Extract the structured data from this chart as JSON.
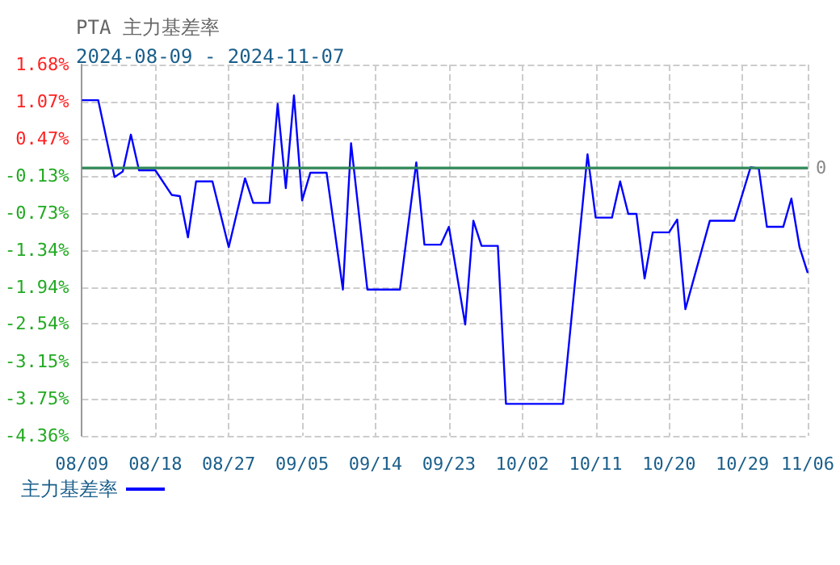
{
  "chart_data": {
    "type": "line",
    "title": "PTA 主力基差率",
    "subtitle": "2024-08-09 - 2024-11-07",
    "x": [
      "2024-08-09",
      "2024-08-11",
      "2024-08-13",
      "2024-08-14",
      "2024-08-15",
      "2024-08-16",
      "2024-08-18",
      "2024-08-20",
      "2024-08-21",
      "2024-08-22",
      "2024-08-23",
      "2024-08-25",
      "2024-08-27",
      "2024-08-29",
      "2024-08-30",
      "2024-09-01",
      "2024-09-02",
      "2024-09-03",
      "2024-09-04",
      "2024-09-05",
      "2024-09-06",
      "2024-09-08",
      "2024-09-10",
      "2024-09-11",
      "2024-09-13",
      "2024-09-17",
      "2024-09-19",
      "2024-09-20",
      "2024-09-22",
      "2024-09-23",
      "2024-09-25",
      "2024-09-26",
      "2024-09-27",
      "2024-09-29",
      "2024-09-30",
      "2024-10-07",
      "2024-10-10",
      "2024-10-11",
      "2024-10-13",
      "2024-10-14",
      "2024-10-15",
      "2024-10-16",
      "2024-10-17",
      "2024-10-18",
      "2024-10-20",
      "2024-10-21",
      "2024-10-22",
      "2024-10-25",
      "2024-10-28",
      "2024-10-30",
      "2024-10-31",
      "2024-11-01",
      "2024-11-03",
      "2024-11-04",
      "2024-11-05",
      "2024-11-06"
    ],
    "series": [
      {
        "name": "主力基差率",
        "color": "#0000ff",
        "values": [
          1.1,
          1.1,
          -0.15,
          -0.06,
          0.54,
          -0.04,
          -0.04,
          -0.44,
          -0.46,
          -1.13,
          -0.22,
          -0.22,
          -1.29,
          -0.17,
          -0.57,
          -0.57,
          1.04,
          -0.33,
          1.18,
          -0.53,
          -0.08,
          -0.08,
          -1.98,
          0.4,
          -1.98,
          -1.98,
          0.09,
          -1.25,
          -1.25,
          -0.96,
          -2.55,
          -0.86,
          -1.27,
          -1.27,
          -3.84,
          -3.84,
          0.22,
          -0.81,
          -0.81,
          -0.22,
          -0.75,
          -0.75,
          -1.8,
          -1.05,
          -1.05,
          -0.84,
          -2.3,
          -0.86,
          -0.86,
          0.01,
          -0.01,
          -0.96,
          -0.96,
          -0.5,
          -1.29,
          -1.71
        ]
      }
    ],
    "xlim": [
      "2024-08-09",
      "2024-11-06"
    ],
    "xticks": [
      {
        "value": "2024-08-09",
        "label": "08/09"
      },
      {
        "value": "2024-08-18",
        "label": "08/18"
      },
      {
        "value": "2024-08-27",
        "label": "08/27"
      },
      {
        "value": "2024-09-05",
        "label": "09/05"
      },
      {
        "value": "2024-09-14",
        "label": "09/14"
      },
      {
        "value": "2024-09-23",
        "label": "09/23"
      },
      {
        "value": "2024-10-02",
        "label": "10/02"
      },
      {
        "value": "2024-10-11",
        "label": "10/11"
      },
      {
        "value": "2024-10-20",
        "label": "10/20"
      },
      {
        "value": "2024-10-29",
        "label": "10/29"
      },
      {
        "value": "2024-11-06",
        "label": "11/06"
      }
    ],
    "ylim": [
      -4.36,
      1.68
    ],
    "yticks": [
      {
        "value": -4.36,
        "label": "-4.36%"
      },
      {
        "value": -3.75,
        "label": "-3.75%"
      },
      {
        "value": -3.15,
        "label": "-3.15%"
      },
      {
        "value": -2.54,
        "label": "-2.54%"
      },
      {
        "value": -1.94,
        "label": "-1.94%"
      },
      {
        "value": -1.34,
        "label": "-1.34%"
      },
      {
        "value": -0.73,
        "label": "-0.73%"
      },
      {
        "value": -0.13,
        "label": "-0.13%"
      },
      {
        "value": 0.47,
        "label": "0.47%"
      },
      {
        "value": 1.07,
        "label": "1.07%"
      },
      {
        "value": 1.68,
        "label": "1.68%"
      }
    ],
    "ref_lines": [
      {
        "axis": "y",
        "value": 0,
        "label": "0",
        "color": "#2e8b57"
      }
    ],
    "grid": true,
    "legend": "bottom left",
    "marker": "none",
    "line_style": "solid"
  }
}
